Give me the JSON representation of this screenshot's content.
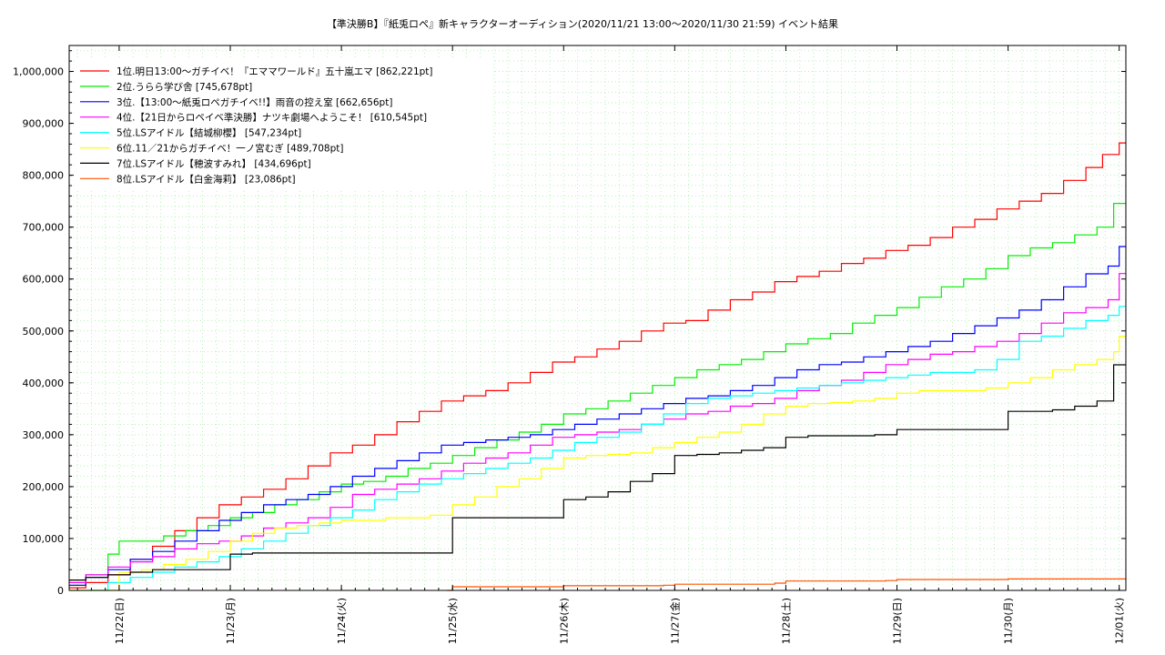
{
  "chart_data": {
    "type": "line",
    "title": "【準決勝B】『紙兎ロペ』新キャラクターオーディション(2020/11/21 13:00〜2020/11/30 21:59)          イベント結果",
    "xlabel": "",
    "ylabel": "",
    "xlim": [
      -0.45,
      9.06
    ],
    "ylim": [
      0,
      1050000
    ],
    "grid": true,
    "legend_position": "top-left",
    "y_ticks": [
      0,
      100000,
      200000,
      300000,
      400000,
      500000,
      600000,
      700000,
      800000,
      900000,
      1000000
    ],
    "y_tick_labels": [
      "0",
      "100,000",
      "200,000",
      "300,000",
      "400,000",
      "500,000",
      "600,000",
      "700,000",
      "800,000",
      "900,000",
      "1,000,000"
    ],
    "x_ticks": [
      0,
      1,
      2,
      3,
      4,
      5,
      6,
      7,
      8,
      9
    ],
    "x_tick_labels": [
      "11/22(日)",
      "11/23(月)",
      "11/24(火)",
      "11/25(水)",
      "11/26(木)",
      "11/27(金)",
      "11/28(土)",
      "11/29(日)",
      "11/30(月)",
      "12/01(火)"
    ],
    "series": [
      {
        "name": "1位.明日13:00〜ガチイベ！『エママワールド』五十嵐エマ [862,221pt]",
        "color": "#ff0000",
        "x": [
          -0.45,
          -0.3,
          -0.1,
          0.1,
          0.3,
          0.5,
          0.7,
          0.9,
          1.1,
          1.3,
          1.5,
          1.7,
          1.9,
          2.1,
          2.3,
          2.5,
          2.7,
          2.9,
          3.1,
          3.3,
          3.5,
          3.7,
          3.9,
          4.1,
          4.3,
          4.5,
          4.7,
          4.9,
          5.1,
          5.3,
          5.5,
          5.7,
          5.9,
          6.1,
          6.3,
          6.5,
          6.7,
          6.9,
          7.1,
          7.3,
          7.5,
          7.7,
          7.9,
          8.1,
          8.3,
          8.5,
          8.7,
          8.85,
          9.0,
          9.06
        ],
        "y": [
          5000,
          15000,
          30000,
          60000,
          85000,
          115000,
          140000,
          165000,
          180000,
          195000,
          215000,
          240000,
          265000,
          280000,
          300000,
          325000,
          345000,
          365000,
          375000,
          385000,
          400000,
          420000,
          440000,
          450000,
          465000,
          480000,
          500000,
          515000,
          520000,
          540000,
          560000,
          575000,
          595000,
          605000,
          615000,
          630000,
          640000,
          655000,
          665000,
          680000,
          700000,
          715000,
          735000,
          750000,
          765000,
          790000,
          815000,
          840000,
          862221,
          862221
        ]
      },
      {
        "name": "2位.うらら学び舎 [745,678pt]",
        "color": "#00ee00",
        "x": [
          -0.45,
          -0.3,
          -0.1,
          0.0,
          0.2,
          0.4,
          0.6,
          0.8,
          1.0,
          1.2,
          1.4,
          1.6,
          1.8,
          2.0,
          2.2,
          2.4,
          2.6,
          2.8,
          3.0,
          3.2,
          3.4,
          3.6,
          3.8,
          4.0,
          4.2,
          4.4,
          4.6,
          4.8,
          5.0,
          5.2,
          5.4,
          5.6,
          5.8,
          6.0,
          6.2,
          6.4,
          6.6,
          6.8,
          7.0,
          7.2,
          7.4,
          7.6,
          7.8,
          8.0,
          8.2,
          8.4,
          8.6,
          8.8,
          8.95,
          9.06
        ],
        "y": [
          10000,
          30000,
          70000,
          95000,
          95000,
          105000,
          115000,
          125000,
          140000,
          150000,
          165000,
          175000,
          190000,
          205000,
          210000,
          220000,
          235000,
          245000,
          260000,
          275000,
          290000,
          305000,
          320000,
          340000,
          350000,
          365000,
          380000,
          395000,
          410000,
          425000,
          435000,
          445000,
          460000,
          475000,
          485000,
          495000,
          515000,
          530000,
          545000,
          565000,
          585000,
          600000,
          620000,
          645000,
          660000,
          670000,
          685000,
          700000,
          745678,
          745678
        ]
      },
      {
        "name": "3位.【13:00〜紙兎ロペガチイベ!!】雨音の控え室 [662,656pt]",
        "color": "#0000ff",
        "x": [
          -0.45,
          -0.3,
          -0.1,
          0.1,
          0.3,
          0.5,
          0.7,
          0.9,
          1.1,
          1.3,
          1.5,
          1.7,
          1.9,
          2.1,
          2.3,
          2.5,
          2.7,
          2.9,
          3.1,
          3.3,
          3.5,
          3.7,
          3.9,
          4.1,
          4.3,
          4.5,
          4.7,
          4.9,
          5.1,
          5.3,
          5.5,
          5.7,
          5.9,
          6.1,
          6.3,
          6.5,
          6.7,
          6.9,
          7.1,
          7.3,
          7.5,
          7.7,
          7.9,
          8.1,
          8.3,
          8.5,
          8.7,
          8.9,
          9.0,
          9.06
        ],
        "y": [
          10000,
          25000,
          40000,
          60000,
          75000,
          95000,
          115000,
          135000,
          150000,
          165000,
          175000,
          185000,
          200000,
          220000,
          235000,
          250000,
          265000,
          280000,
          285000,
          290000,
          295000,
          300000,
          310000,
          320000,
          330000,
          340000,
          350000,
          360000,
          370000,
          375000,
          385000,
          395000,
          410000,
          425000,
          435000,
          440000,
          450000,
          460000,
          470000,
          480000,
          495000,
          510000,
          525000,
          540000,
          560000,
          585000,
          610000,
          625000,
          662656,
          662656
        ]
      },
      {
        "name": "4位.【21日からロペイベ準決勝】ナツキ劇場へようこそ！ [610,545pt]",
        "color": "#ff00ff",
        "x": [
          -0.45,
          -0.3,
          -0.1,
          0.1,
          0.3,
          0.5,
          0.7,
          0.9,
          1.1,
          1.3,
          1.5,
          1.7,
          1.9,
          2.1,
          2.3,
          2.5,
          2.7,
          2.9,
          3.1,
          3.3,
          3.5,
          3.7,
          3.9,
          4.1,
          4.3,
          4.5,
          4.7,
          4.9,
          5.1,
          5.3,
          5.5,
          5.7,
          5.9,
          6.1,
          6.3,
          6.5,
          6.7,
          6.9,
          7.1,
          7.3,
          7.5,
          7.7,
          7.9,
          8.1,
          8.3,
          8.5,
          8.7,
          8.9,
          9.0,
          9.06
        ],
        "y": [
          15000,
          30000,
          45000,
          55000,
          65000,
          80000,
          90000,
          95000,
          105000,
          120000,
          130000,
          140000,
          160000,
          185000,
          195000,
          205000,
          215000,
          230000,
          245000,
          255000,
          265000,
          280000,
          295000,
          300000,
          305000,
          310000,
          320000,
          330000,
          340000,
          345000,
          355000,
          360000,
          370000,
          385000,
          395000,
          405000,
          420000,
          435000,
          445000,
          455000,
          460000,
          470000,
          480000,
          495000,
          515000,
          535000,
          545000,
          560000,
          610545,
          610545
        ]
      },
      {
        "name": "5位.LSアイドル【結城柳櫻】 [547,234pt]",
        "color": "#00ffff",
        "x": [
          -0.45,
          -0.3,
          -0.1,
          0.1,
          0.3,
          0.5,
          0.7,
          0.9,
          1.1,
          1.3,
          1.5,
          1.7,
          1.9,
          2.1,
          2.3,
          2.5,
          2.7,
          2.9,
          3.1,
          3.3,
          3.5,
          3.7,
          3.9,
          4.1,
          4.3,
          4.5,
          4.7,
          4.9,
          5.1,
          5.3,
          5.5,
          5.7,
          5.9,
          6.1,
          6.3,
          6.5,
          6.7,
          6.9,
          7.1,
          7.3,
          7.5,
          7.7,
          7.9,
          8.1,
          8.3,
          8.5,
          8.7,
          8.9,
          9.0,
          9.06
        ],
        "y": [
          0,
          0,
          15000,
          25000,
          35000,
          45000,
          55000,
          65000,
          80000,
          95000,
          110000,
          125000,
          140000,
          155000,
          175000,
          190000,
          205000,
          215000,
          225000,
          235000,
          245000,
          255000,
          270000,
          285000,
          295000,
          305000,
          320000,
          340000,
          360000,
          370000,
          375000,
          380000,
          385000,
          390000,
          395000,
          400000,
          405000,
          410000,
          415000,
          420000,
          420000,
          425000,
          445000,
          480000,
          490000,
          505000,
          520000,
          530000,
          547234,
          547234
        ]
      },
      {
        "name": "6位.11／21からガチイベ！一ノ宮むぎ [489,708pt]",
        "color": "#ffff00",
        "x": [
          -0.45,
          -0.1,
          0.0,
          0.2,
          0.4,
          0.6,
          0.8,
          1.0,
          1.2,
          1.4,
          1.6,
          1.8,
          2.0,
          2.2,
          2.4,
          2.6,
          2.8,
          3.0,
          3.2,
          3.4,
          3.6,
          3.8,
          4.0,
          4.2,
          4.4,
          4.6,
          4.8,
          5.0,
          5.2,
          5.4,
          5.6,
          5.8,
          6.0,
          6.2,
          6.4,
          6.6,
          6.8,
          7.0,
          7.2,
          7.4,
          7.6,
          7.8,
          8.0,
          8.2,
          8.4,
          8.6,
          8.8,
          8.95,
          9.0,
          9.06
        ],
        "y": [
          0,
          0,
          35000,
          40000,
          50000,
          60000,
          75000,
          95000,
          110000,
          120000,
          125000,
          130000,
          135000,
          135000,
          140000,
          140000,
          145000,
          165000,
          180000,
          200000,
          215000,
          235000,
          255000,
          260000,
          262000,
          265000,
          275000,
          285000,
          295000,
          305000,
          320000,
          340000,
          355000,
          360000,
          362000,
          365000,
          370000,
          380000,
          385000,
          385000,
          385000,
          390000,
          400000,
          410000,
          425000,
          435000,
          445000,
          460000,
          489708,
          489708
        ]
      },
      {
        "name": "7位.LSアイドル【穂波すみれ】 [434,696pt]",
        "color": "#000000",
        "x": [
          -0.45,
          -0.3,
          -0.1,
          0.1,
          0.3,
          0.5,
          0.7,
          0.9,
          1.0,
          1.2,
          1.4,
          1.6,
          1.8,
          2.0,
          2.2,
          2.4,
          2.6,
          2.8,
          2.95,
          3.0,
          3.2,
          3.4,
          3.6,
          3.8,
          4.0,
          4.2,
          4.4,
          4.6,
          4.8,
          5.0,
          5.2,
          5.4,
          5.6,
          5.8,
          6.0,
          6.2,
          6.4,
          6.6,
          6.8,
          7.0,
          7.2,
          7.4,
          7.6,
          7.8,
          8.0,
          8.2,
          8.4,
          8.6,
          8.8,
          8.95,
          9.06
        ],
        "y": [
          20000,
          25000,
          30000,
          35000,
          40000,
          40000,
          40000,
          40000,
          70000,
          72000,
          72000,
          72000,
          72000,
          72000,
          72000,
          72000,
          72000,
          72000,
          72000,
          140000,
          140000,
          140000,
          140000,
          140000,
          175000,
          180000,
          190000,
          210000,
          225000,
          260000,
          262000,
          265000,
          270000,
          275000,
          295000,
          298000,
          298000,
          298000,
          300000,
          310000,
          310000,
          310000,
          310000,
          310000,
          345000,
          345000,
          348000,
          355000,
          365000,
          434696,
          434696
        ]
      },
      {
        "name": "8位.LSアイドル【白金海莉】 [23,086pt]",
        "color": "#ff5500",
        "x": [
          2.95,
          3.0,
          4.0,
          4.9,
          5.0,
          5.9,
          6.0,
          6.9,
          7.0,
          8.0,
          9.06
        ],
        "y": [
          0,
          7000,
          9000,
          10000,
          12000,
          14000,
          18000,
          19000,
          21000,
          22000,
          23086
        ]
      }
    ]
  }
}
